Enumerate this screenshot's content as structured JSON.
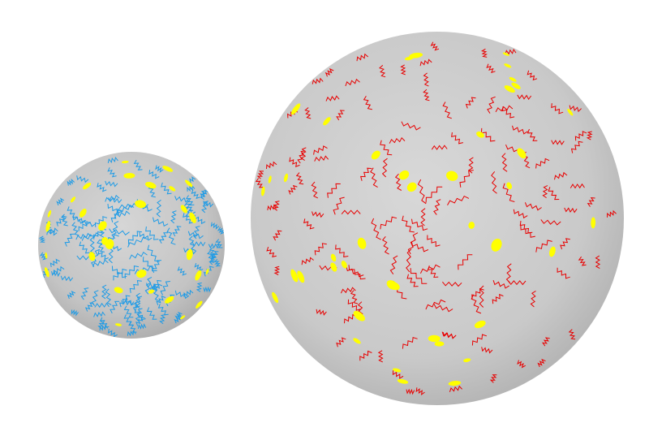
{
  "scene": {
    "background_color": "#ffffff",
    "spheres": [
      {
        "id": "small-sphere",
        "base_color": "#c4c4c4",
        "highlight_color": "#d6d6d6",
        "shade_color": "#a9a9a9",
        "squiggle_color": "#1e9be6",
        "dot_color": "#ffff00",
        "squiggle_count": 150,
        "dot_count": 30,
        "seed": 17
      },
      {
        "id": "large-sphere",
        "base_color": "#c9c9c9",
        "highlight_color": "#d8d8d8",
        "shade_color": "#adadad",
        "squiggle_color": "#e80000",
        "dot_color": "#ffff00",
        "squiggle_count": 150,
        "dot_count": 42,
        "seed": 91
      }
    ]
  }
}
